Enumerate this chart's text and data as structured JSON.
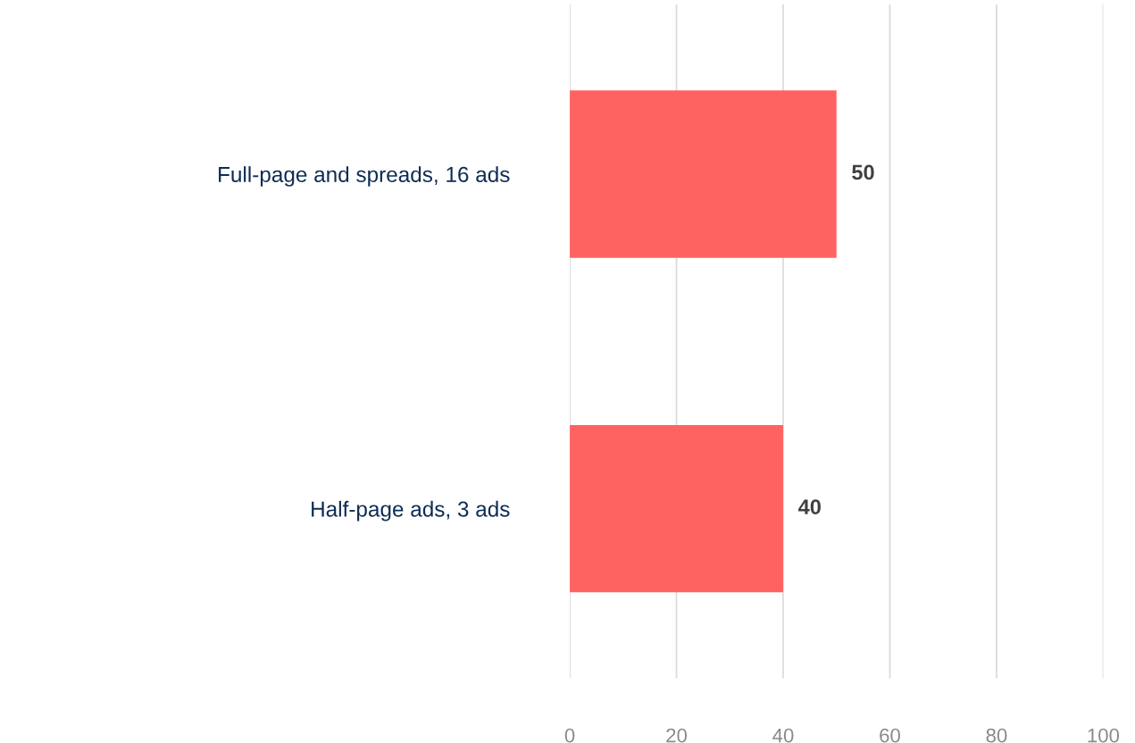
{
  "chart_data": {
    "type": "bar",
    "orientation": "horizontal",
    "categories": [
      "Full-page and spreads, 16 ads",
      "Half-page ads, 3 ads"
    ],
    "values": [
      50,
      40
    ],
    "color": "#ff6361",
    "xlim": [
      0,
      100
    ],
    "xticks": [
      0,
      20,
      40,
      60,
      80,
      100
    ],
    "grid": "x",
    "data_labels": true
  }
}
